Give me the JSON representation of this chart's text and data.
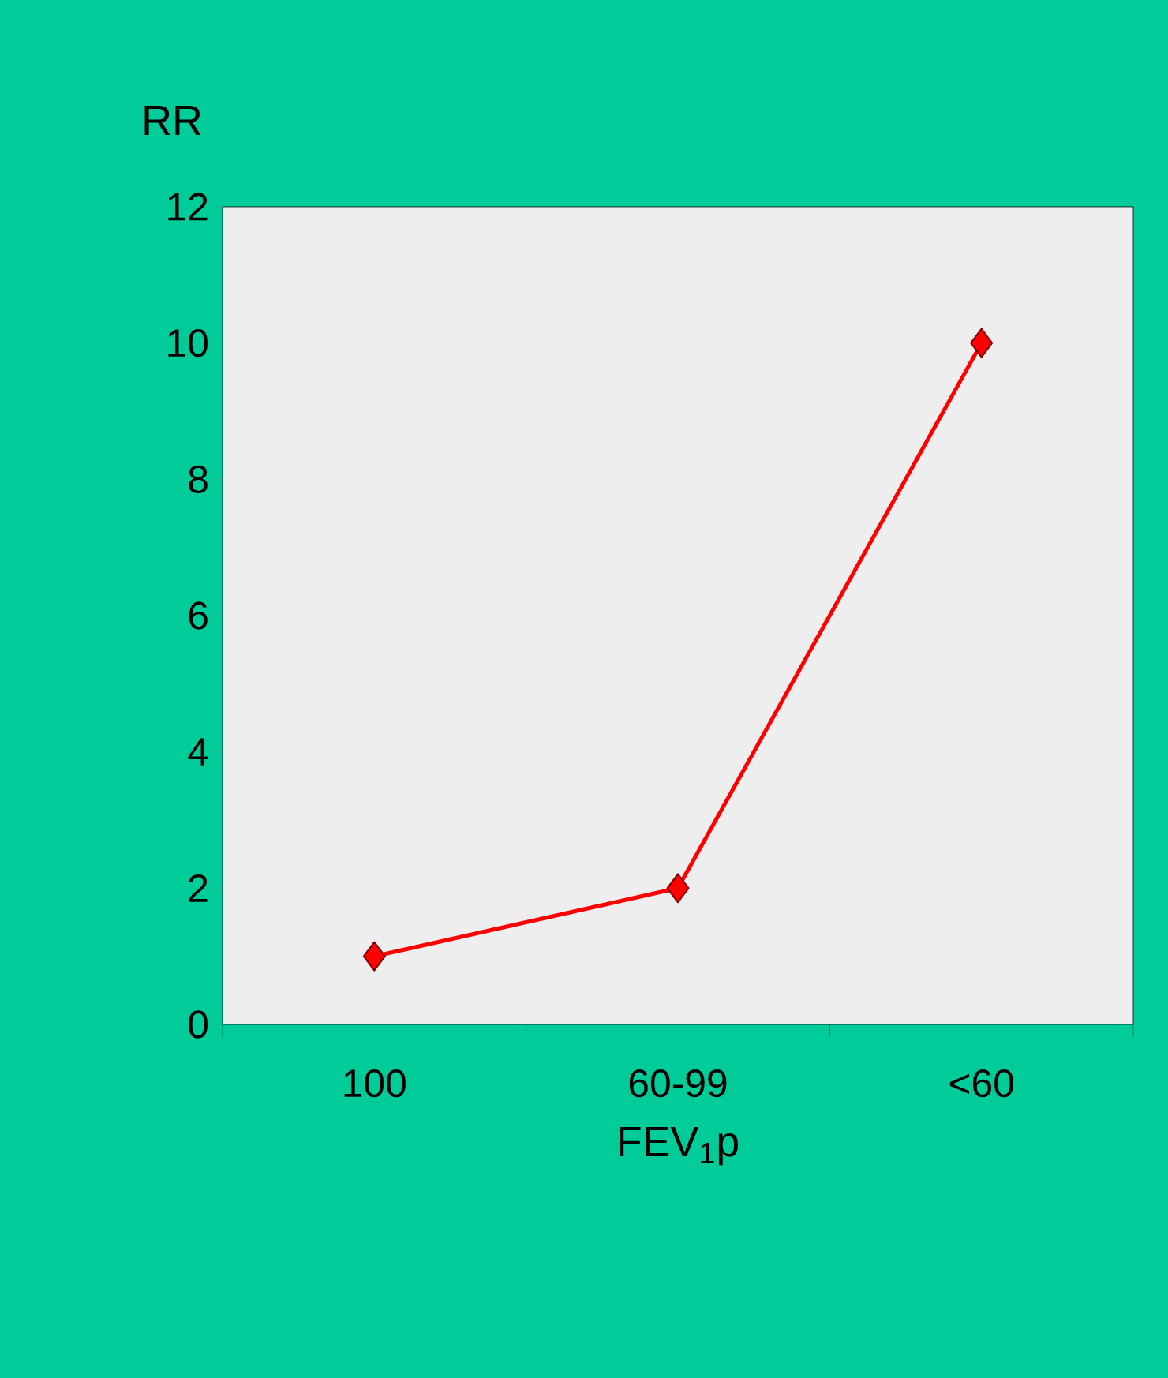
{
  "chart_data": {
    "type": "line",
    "xlabel": "FEV$_{1}$p",
    "ylabel": "RR",
    "categories": [
      "100",
      "60-99",
      "<60"
    ],
    "series": [
      {
        "color": "#ff0000",
        "values": [
          1,
          2,
          10
        ]
      }
    ],
    "ylim": [
      0,
      12
    ],
    "yticks": [
      0,
      2,
      4,
      6,
      8,
      10,
      12
    ],
    "marker": "diamond",
    "line_style": "solid",
    "grid": false
  }
}
